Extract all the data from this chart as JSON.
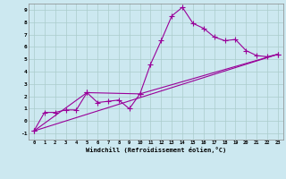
{
  "xlabel": "Windchill (Refroidissement éolien,°C)",
  "ylabel": "",
  "background_color": "#cce8f0",
  "grid_color": "#aacccc",
  "line_color": "#990099",
  "xlim": [
    -0.5,
    23.5
  ],
  "ylim": [
    -1.5,
    9.5
  ],
  "xticks": [
    0,
    1,
    2,
    3,
    4,
    5,
    6,
    7,
    8,
    9,
    10,
    11,
    12,
    13,
    14,
    15,
    16,
    17,
    18,
    19,
    20,
    21,
    22,
    23
  ],
  "yticks": [
    -1,
    0,
    1,
    2,
    3,
    4,
    5,
    6,
    7,
    8,
    9
  ],
  "series1_x": [
    0,
    1,
    2,
    3,
    4,
    5,
    6,
    7,
    8,
    9,
    10,
    11,
    12,
    13,
    14,
    15,
    16,
    17,
    18,
    19,
    20,
    21,
    22,
    23
  ],
  "series1_y": [
    -0.8,
    0.7,
    0.7,
    0.9,
    0.9,
    2.3,
    1.5,
    1.6,
    1.7,
    1.0,
    2.2,
    4.6,
    6.5,
    8.5,
    9.2,
    7.9,
    7.5,
    6.8,
    6.5,
    6.6,
    5.7,
    5.3,
    5.2,
    5.4
  ],
  "series2_x": [
    0,
    5,
    10,
    23
  ],
  "series2_y": [
    -0.8,
    2.3,
    2.2,
    5.4
  ],
  "series3_x": [
    0,
    23
  ],
  "series3_y": [
    -0.8,
    5.4
  ],
  "marker_size": 4,
  "linewidth": 0.8
}
